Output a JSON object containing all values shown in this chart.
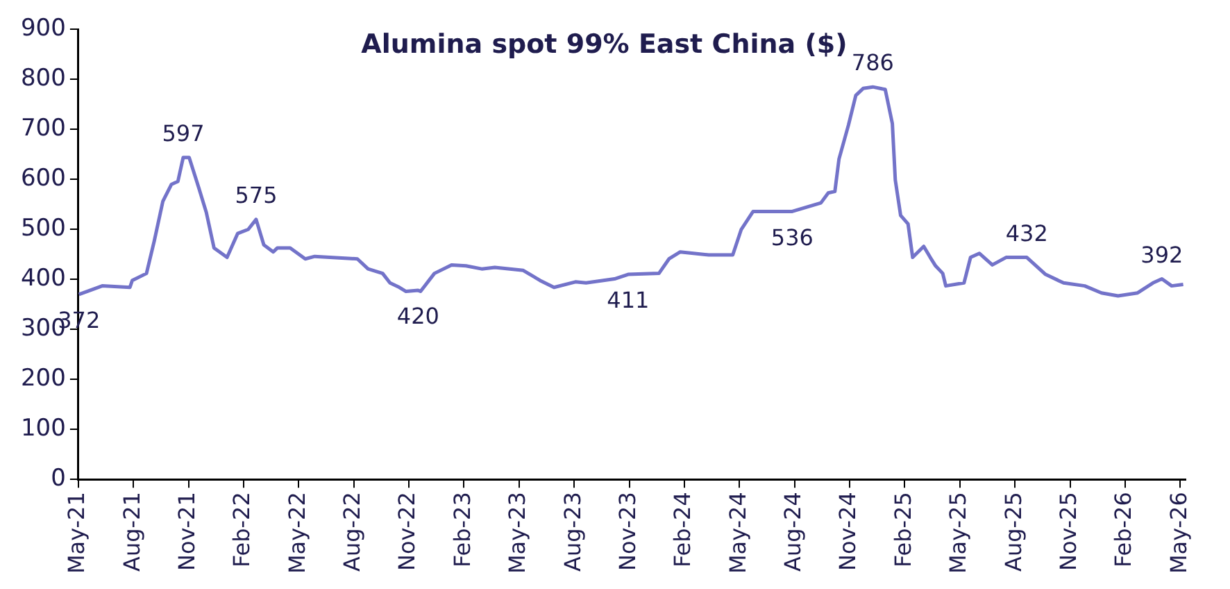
{
  "chart_data": {
    "type": "line",
    "title": "Alumina spot 99% East China ($)",
    "x": [
      "2021-05-02",
      "2021-06-10",
      "2021-07-26",
      "2021-07-30",
      "2021-08-23",
      "2021-09-05",
      "2021-09-19",
      "2021-10-03",
      "2021-10-14",
      "2021-10-23",
      "2021-11-02",
      "2021-11-18",
      "2021-11-30",
      "2021-12-13",
      "2022-01-04",
      "2022-01-22",
      "2022-02-08",
      "2022-02-20",
      "2022-03-04",
      "2022-03-20",
      "2022-03-27",
      "2022-04-17",
      "2022-05-12",
      "2022-05-28",
      "2022-08-07",
      "2022-08-25",
      "2022-09-18",
      "2022-09-30",
      "2022-10-16",
      "2022-10-27",
      "2022-11-16",
      "2022-11-20",
      "2022-12-13",
      "2023-01-11",
      "2023-02-04",
      "2023-02-28",
      "2023-03-22",
      "2023-05-08",
      "2023-06-05",
      "2023-06-28",
      "2023-08-03",
      "2023-08-21",
      "2023-10-07",
      "2023-10-30",
      "2023-12-20",
      "2024-01-06",
      "2024-01-25",
      "2024-03-11",
      "2024-04-20",
      "2024-05-04",
      "2024-05-24",
      "2024-07-28",
      "2024-09-14",
      "2024-09-26",
      "2024-10-07",
      "2024-10-14",
      "2024-10-30",
      "2024-11-11",
      "2024-11-23",
      "2024-12-09",
      "2024-12-30",
      "2025-01-11",
      "2025-01-16",
      "2025-01-25",
      "2025-02-06",
      "2025-02-13",
      "2025-03-02",
      "2025-03-13",
      "2025-03-22",
      "2025-04-03",
      "2025-04-08",
      "2025-05-08",
      "2025-05-19",
      "2025-06-03",
      "2025-06-24",
      "2025-07-17",
      "2025-08-21",
      "2025-09-21",
      "2025-10-21",
      "2025-11-25",
      "2025-12-23",
      "2026-01-20",
      "2026-02-20",
      "2026-03-17",
      "2026-04-01",
      "2026-04-17",
      "2026-05-06"
    ],
    "series": [
      {
        "color": "#7373c9",
        "values": [
          370,
          387,
          384,
          398,
          412,
          477,
          556,
          590,
          596,
          644,
          644,
          582,
          534,
          463,
          444,
          492,
          500,
          520,
          469,
          455,
          463,
          463,
          441,
          446,
          441,
          421,
          412,
          393,
          384,
          376,
          378,
          376,
          412,
          429,
          427,
          421,
          424,
          418,
          398,
          384,
          395,
          393,
          401,
          410,
          412,
          441,
          455,
          449,
          449,
          500,
          536,
          536,
          553,
          573,
          576,
          641,
          709,
          768,
          782,
          785,
          780,
          712,
          599,
          528,
          511,
          444,
          466,
          444,
          427,
          412,
          387,
          393,
          444,
          452,
          429,
          444,
          444,
          410,
          393,
          387,
          373,
          367,
          373,
          393,
          401,
          387,
          390
        ]
      }
    ],
    "xlim": [
      "2021-05-01",
      "2026-05-10"
    ],
    "xticks": [
      {
        "value": "2021-05",
        "label": "May-21"
      },
      {
        "value": "2021-08",
        "label": "Aug-21"
      },
      {
        "value": "2021-11",
        "label": "Nov-21"
      },
      {
        "value": "2022-02",
        "label": "Feb-22"
      },
      {
        "value": "2022-05",
        "label": "May-22"
      },
      {
        "value": "2022-08",
        "label": "Aug-22"
      },
      {
        "value": "2022-11",
        "label": "Nov-22"
      },
      {
        "value": "2023-02",
        "label": "Feb-23"
      },
      {
        "value": "2023-05",
        "label": "May-23"
      },
      {
        "value": "2023-08",
        "label": "Aug-23"
      },
      {
        "value": "2023-11",
        "label": "Nov-23"
      },
      {
        "value": "2024-02",
        "label": "Feb-24"
      },
      {
        "value": "2024-05",
        "label": "May-24"
      },
      {
        "value": "2024-08",
        "label": "Aug-24"
      },
      {
        "value": "2024-11",
        "label": "Nov-24"
      },
      {
        "value": "2025-02",
        "label": "Feb-25"
      },
      {
        "value": "2025-05",
        "label": "May-25"
      },
      {
        "value": "2025-08",
        "label": "Aug-25"
      },
      {
        "value": "2025-11",
        "label": "Nov-25"
      },
      {
        "value": "2026-02",
        "label": "Feb-26"
      },
      {
        "value": "2026-05",
        "label": "May-26"
      }
    ],
    "ylim": [
      0,
      900
    ],
    "yticks": [
      0,
      100,
      200,
      300,
      400,
      500,
      600,
      700,
      800,
      900
    ],
    "grid": false,
    "legend": false,
    "marker": "none",
    "line_style": "solid",
    "annotations": [
      {
        "text": "372",
        "x": "2021-05-02",
        "y": 370
      },
      {
        "text": "597",
        "x": "2021-10-23",
        "y": 644
      },
      {
        "text": "575",
        "x": "2022-02-20",
        "y": 520
      },
      {
        "text": "420",
        "x": "2022-11-16",
        "y": 378
      },
      {
        "text": "411",
        "x": "2023-10-30",
        "y": 410
      },
      {
        "text": "536",
        "x": "2024-07-28",
        "y": 536
      },
      {
        "text": "786",
        "x": "2024-12-09",
        "y": 785
      },
      {
        "text": "432",
        "x": "2025-08-21",
        "y": 444
      },
      {
        "text": "392",
        "x": "2026-04-01",
        "y": 401
      }
    ]
  }
}
